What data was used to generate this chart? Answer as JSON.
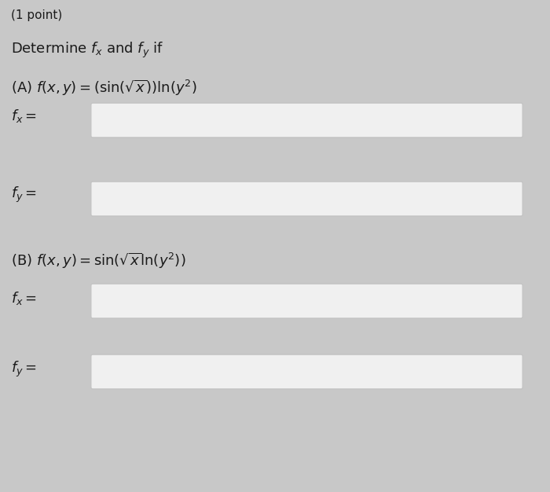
{
  "background_color": "#c8c8c8",
  "text_color": "#1a1a1a",
  "point_text": "(1 point)",
  "intro_text": "Determine $f_x$ and $f_y$ if",
  "part_A_label": "(A) $f(x, y) = (\\sin(\\sqrt{x}))\\ln(y^2)$",
  "part_B_label": "(B) $f(x, y) = \\sin(\\sqrt{x}\\ln(y^2))$",
  "fx_label_A": "$f_x =$",
  "fy_label_A": "$f_y =$",
  "fx_label_B": "$f_x =$",
  "fy_label_B": "$f_y =$",
  "box_facecolor": "#f0f0f0",
  "box_edgecolor": "#c0c0c0",
  "font_size_point": 11,
  "font_size_main": 13,
  "font_size_label": 13,
  "figwidth": 7.0,
  "figheight": 6.26,
  "dpi": 100
}
